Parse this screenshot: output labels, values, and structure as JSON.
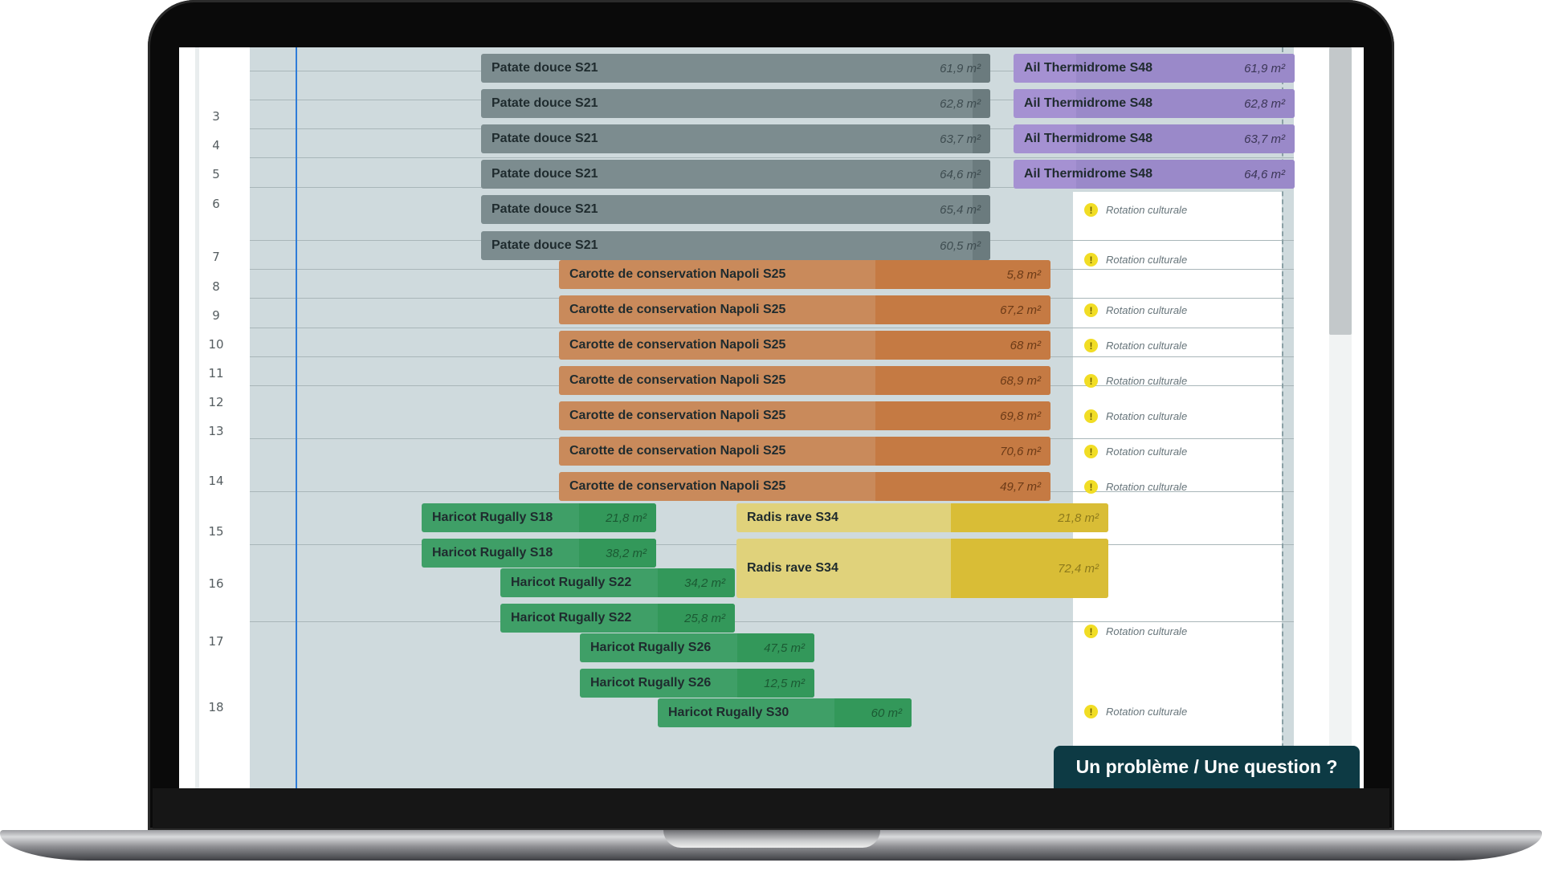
{
  "row_numbers": [
    "3",
    "4",
    "5",
    "6",
    "7",
    "8",
    "9",
    "10",
    "11",
    "12",
    "13",
    "14",
    "15",
    "16",
    "17",
    "18"
  ],
  "crops": [
    {
      "label": "Patate douce S21",
      "area": "61,9 m²"
    },
    {
      "label": "Patate douce S21",
      "area": "62,8 m²"
    },
    {
      "label": "Patate douce S21",
      "area": "63,7 m²"
    },
    {
      "label": "Patate douce S21",
      "area": "64,6 m²"
    },
    {
      "label": "Patate douce S21",
      "area": "65,4 m²"
    },
    {
      "label": "Patate douce S21",
      "area": "60,5 m²"
    },
    {
      "label": "Ail Thermidrome S48",
      "area": "61,9 m²"
    },
    {
      "label": "Ail Thermidrome S48",
      "area": "62,8 m²"
    },
    {
      "label": "Ail Thermidrome S48",
      "area": "63,7 m²"
    },
    {
      "label": "Ail Thermidrome S48",
      "area": "64,6 m²"
    },
    {
      "label": "Carotte de conservation Napoli S25",
      "area": "5,8 m²"
    },
    {
      "label": "Carotte de conservation Napoli S25",
      "area": "67,2 m²"
    },
    {
      "label": "Carotte de conservation Napoli S25",
      "area": "68 m²"
    },
    {
      "label": "Carotte de conservation Napoli S25",
      "area": "68,9 m²"
    },
    {
      "label": "Carotte de conservation Napoli S25",
      "area": "69,8 m²"
    },
    {
      "label": "Carotte de conservation Napoli S25",
      "area": "70,6 m²"
    },
    {
      "label": "Carotte de conservation Napoli S25",
      "area": "49,7 m²"
    },
    {
      "label": "Haricot Rugally S18",
      "area": "21,8 m²"
    },
    {
      "label": "Haricot Rugally S18",
      "area": "38,2 m²"
    },
    {
      "label": "Haricot Rugally S22",
      "area": "34,2 m²"
    },
    {
      "label": "Haricot Rugally S22",
      "area": "25,8 m²"
    },
    {
      "label": "Haricot Rugally S26",
      "area": "47,5 m²"
    },
    {
      "label": "Haricot Rugally S26",
      "area": "12,5 m²"
    },
    {
      "label": "Haricot Rugally S30",
      "area": "60 m²"
    },
    {
      "label": "Radis rave S34",
      "area": "21,8 m²"
    },
    {
      "label": "Radis rave S34",
      "area": "72,4 m²"
    }
  ],
  "warning_label": "Rotation culturale",
  "warning_icon": "exclamation-icon",
  "help_button": "Un problème / Une question ?",
  "colors": {
    "patate": "#7c8c8f",
    "ail": "#a591d2",
    "carotte": "#c98a5b",
    "haricot": "#3f9f67",
    "radis": "#e0d27b",
    "today_line": "#2f7cd8",
    "warning": "#f1dd25",
    "help_button_bg": "#0d3a44"
  }
}
